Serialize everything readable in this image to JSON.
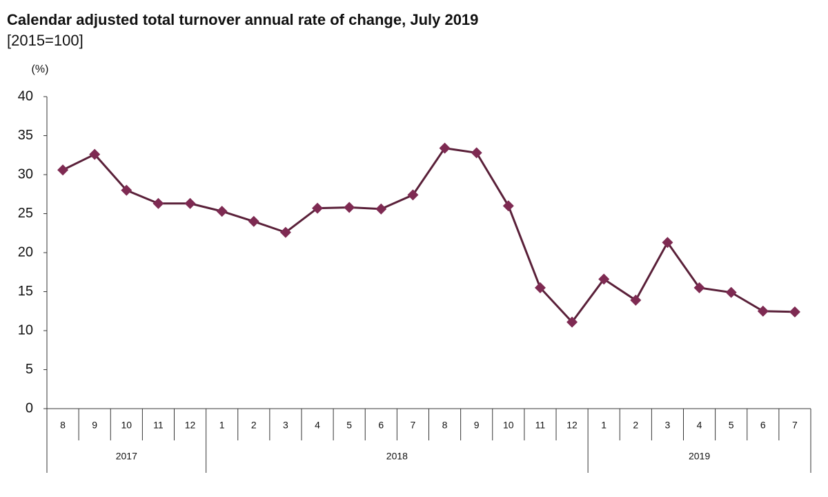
{
  "chart_data": {
    "type": "line",
    "title": "Calendar adjusted total turnover annual rate of change, July 2019",
    "subtitle": "[2015=100]",
    "y_label": "(%)",
    "year_groups": [
      {
        "label": "2017",
        "months": [
          "8",
          "9",
          "10",
          "11",
          "12"
        ]
      },
      {
        "label": "2018",
        "months": [
          "1",
          "2",
          "3",
          "4",
          "5",
          "6",
          "7",
          "8",
          "9",
          "10",
          "11",
          "12"
        ]
      },
      {
        "label": "2019",
        "months": [
          "1",
          "2",
          "3",
          "4",
          "5",
          "6",
          "7"
        ]
      }
    ],
    "values": [
      30.6,
      32.6,
      28.0,
      26.3,
      26.3,
      25.3,
      24.0,
      22.6,
      25.7,
      25.8,
      25.6,
      27.4,
      33.4,
      32.8,
      26.0,
      15.5,
      11.1,
      16.6,
      13.9,
      21.3,
      15.5,
      14.9,
      12.5,
      12.4
    ],
    "color": "#7e2a52",
    "ylim": [
      0,
      40
    ],
    "yticks": [
      0,
      5,
      10,
      15,
      20,
      25,
      30,
      35,
      40
    ]
  }
}
